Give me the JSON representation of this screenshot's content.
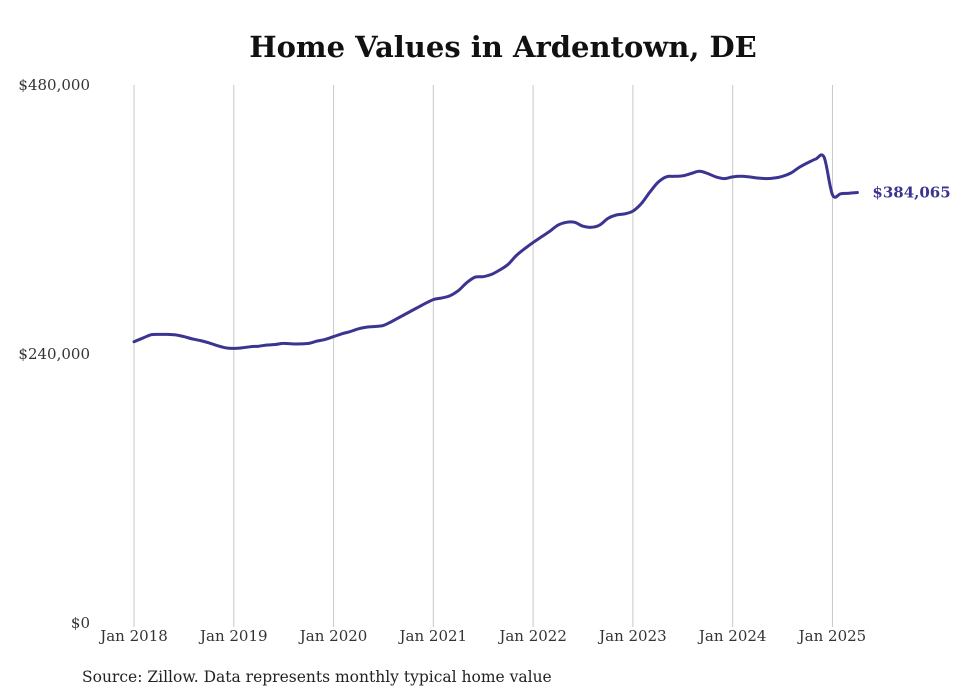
{
  "chart_data": {
    "type": "line",
    "title": "Home Values in Ardentown, DE",
    "source": "Source: Zillow. Data represents monthly typical home value",
    "y_ticks": [
      {
        "value": 0,
        "label": "$0"
      },
      {
        "value": 240000,
        "label": "$240,000"
      },
      {
        "value": 480000,
        "label": "$480,000"
      }
    ],
    "x_ticks": [
      {
        "value": 0,
        "label": "Jan 2018"
      },
      {
        "value": 12,
        "label": "Jan 2019"
      },
      {
        "value": 24,
        "label": "Jan 2020"
      },
      {
        "value": 36,
        "label": "Jan 2021"
      },
      {
        "value": 48,
        "label": "Jan 2022"
      },
      {
        "value": 60,
        "label": "Jan 2023"
      },
      {
        "value": 72,
        "label": "Jan 2024"
      },
      {
        "value": 84,
        "label": "Jan 2025"
      }
    ],
    "ylim": [
      0,
      480000
    ],
    "grid": "vertical",
    "series": [
      {
        "color": "#3b3491",
        "end_label": "$384,065",
        "values": [
          251000,
          254000,
          257000,
          257500,
          257500,
          257000,
          255500,
          253500,
          252000,
          250000,
          247500,
          245500,
          245000,
          245500,
          246500,
          247000,
          248000,
          248500,
          249500,
          249000,
          249000,
          249500,
          251500,
          253000,
          255500,
          258000,
          260000,
          262500,
          264000,
          264500,
          265500,
          269000,
          273000,
          277000,
          281000,
          285000,
          288500,
          290000,
          292000,
          296500,
          303500,
          308500,
          309000,
          311000,
          315000,
          320000,
          328000,
          334000,
          339500,
          344500,
          349500,
          355000,
          357500,
          357500,
          354000,
          353000,
          355000,
          361000,
          364000,
          365000,
          367500,
          374000,
          384000,
          393000,
          398000,
          398500,
          399000,
          401000,
          403000,
          401000,
          398000,
          396500,
          398000,
          398500,
          398000,
          397000,
          396500,
          397000,
          398500,
          401500,
          406500,
          410500,
          414000,
          415500,
          382000,
          383000,
          383500,
          384065
        ]
      }
    ]
  }
}
